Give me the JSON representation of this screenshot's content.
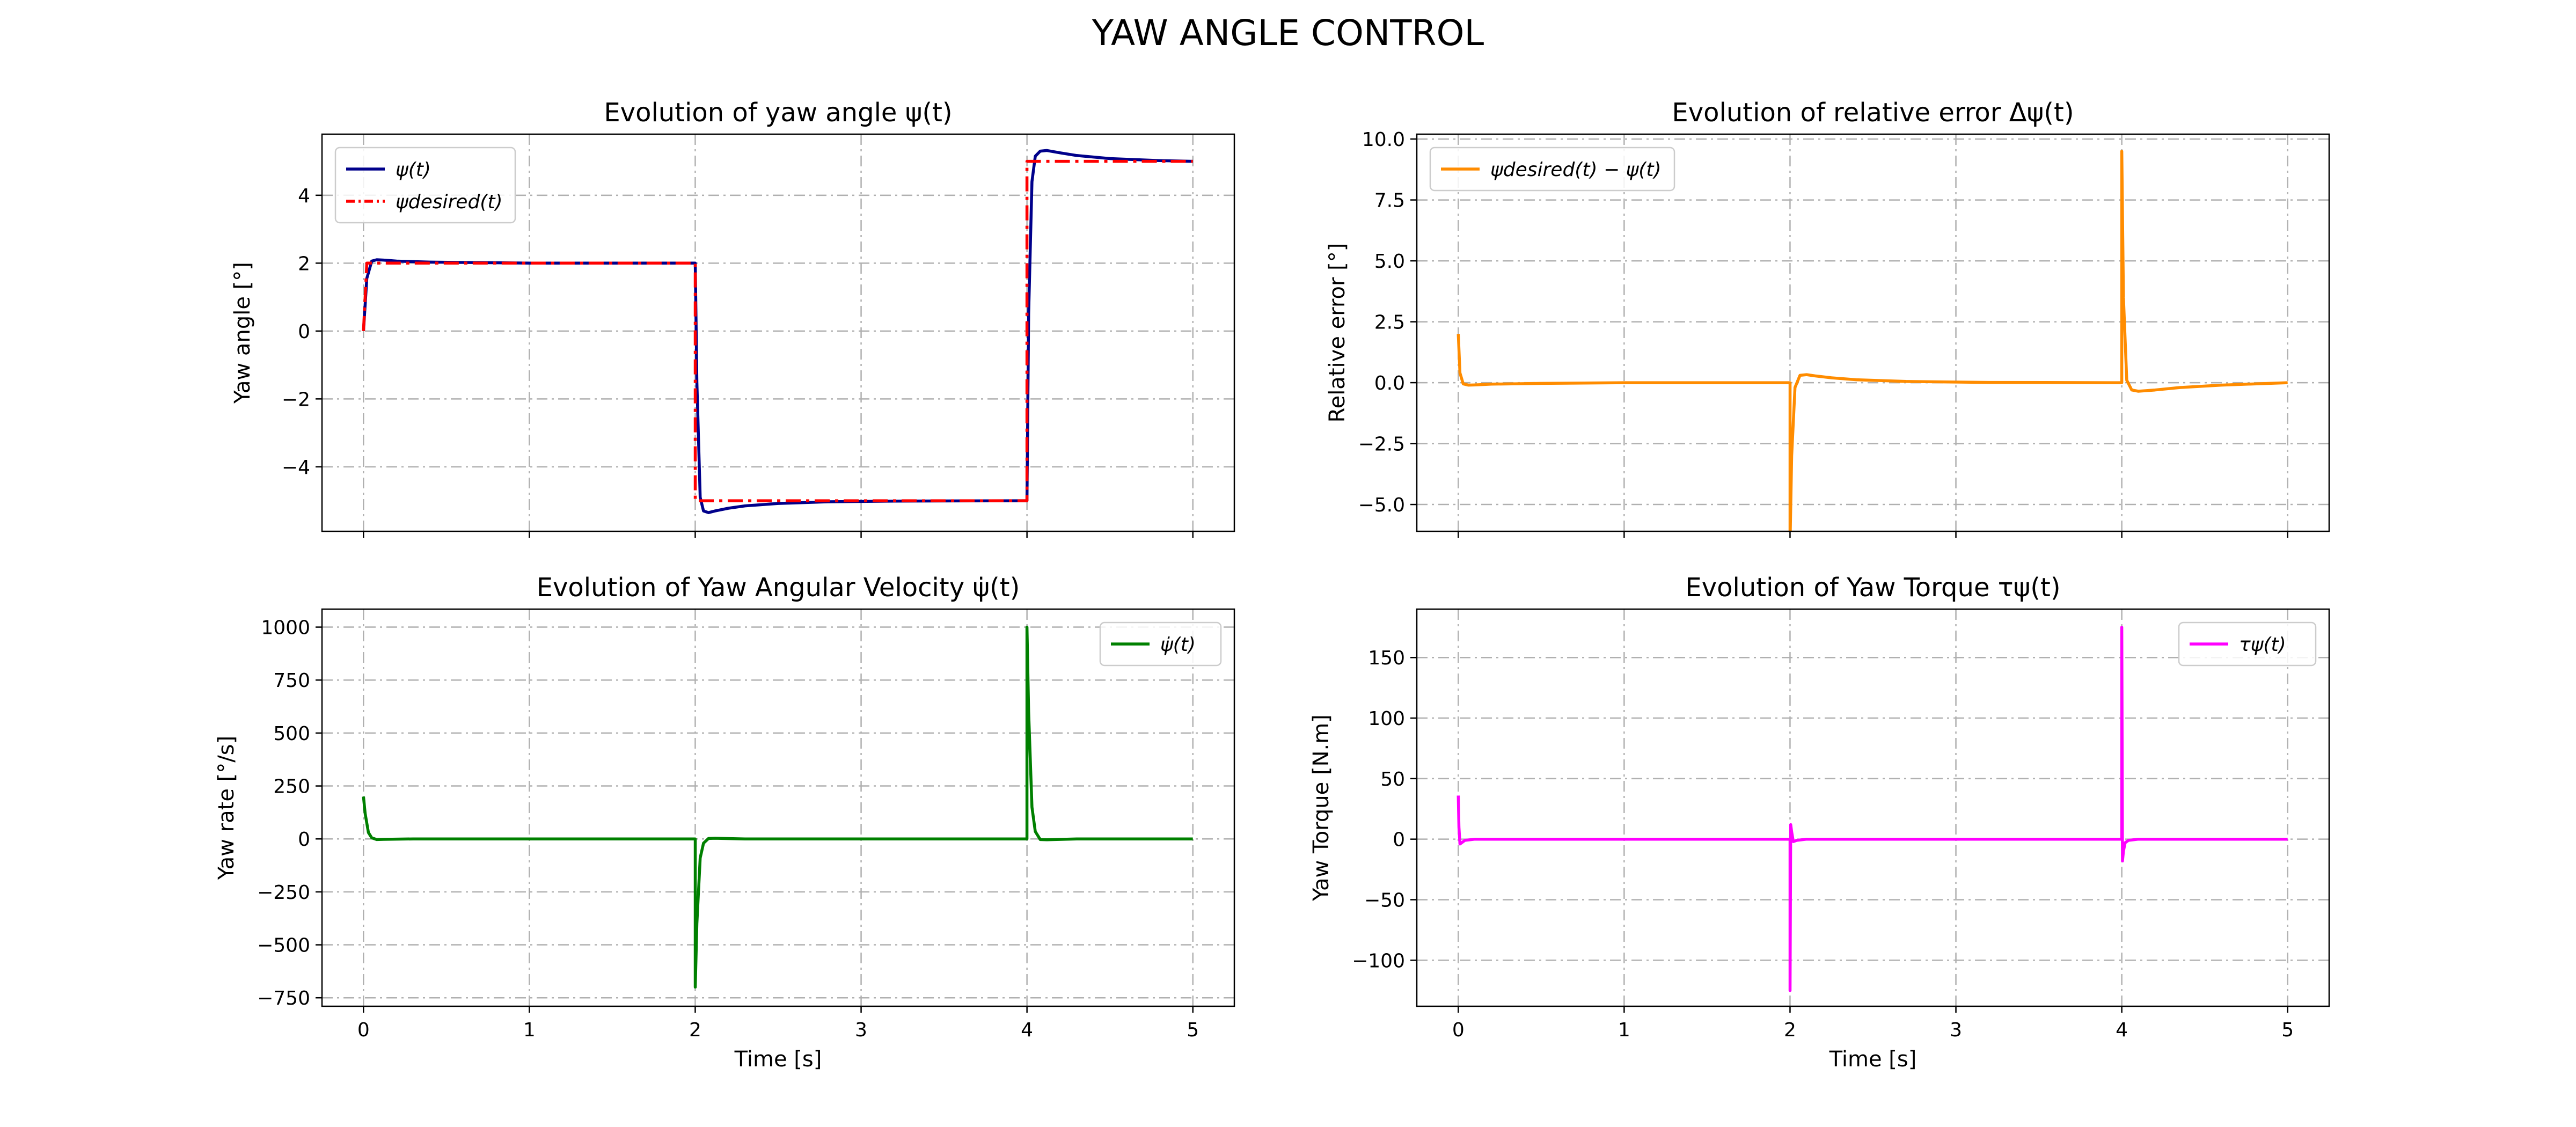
{
  "suptitle": "YAW ANGLE CONTROL",
  "colors": {
    "grid": "#b0b0b0",
    "psi": "#00008b",
    "psi_desired": "#ff0000",
    "error": "#ff8c00",
    "rate": "#008000",
    "torque": "#ff00ff"
  },
  "chart_data": [
    {
      "type": "line",
      "title": "Evolution of yaw angle ψ(t)",
      "xlabel": "",
      "ylabel": "Yaw angle [°]",
      "xlim": [
        -0.25,
        5.25
      ],
      "ylim": [
        -5.9,
        5.8
      ],
      "xticks": [
        0,
        1,
        2,
        3,
        4,
        5
      ],
      "xtick_labels": [
        "",
        "",
        "",
        "",
        "",
        ""
      ],
      "yticks": [
        -4,
        -2,
        0,
        2,
        4
      ],
      "ytick_labels": [
        "−4",
        "−2",
        "0",
        "2",
        "4"
      ],
      "grid": true,
      "legend_position": "upper left",
      "series": [
        {
          "name": "ψ(t)",
          "color": "#00008b",
          "style": "solid",
          "x": [
            0,
            0.02,
            0.05,
            0.08,
            0.12,
            0.2,
            0.4,
            1.0,
            2.0,
            2.01,
            2.03,
            2.05,
            2.08,
            2.12,
            2.2,
            2.3,
            2.5,
            2.8,
            3.2,
            4.0,
            4.01,
            4.03,
            4.05,
            4.08,
            4.12,
            4.2,
            4.3,
            4.5,
            4.8,
            5.0
          ],
          "y": [
            0,
            1.55,
            2.06,
            2.1,
            2.09,
            2.06,
            2.03,
            2.0,
            2.0,
            -1.5,
            -4.9,
            -5.3,
            -5.35,
            -5.3,
            -5.22,
            -5.15,
            -5.08,
            -5.03,
            -5.01,
            -5.0,
            0.5,
            4.4,
            5.15,
            5.3,
            5.32,
            5.25,
            5.17,
            5.08,
            5.02,
            5.0
          ]
        },
        {
          "name": "ψdesired(t)",
          "color": "#ff0000",
          "style": "dashdot",
          "x": [
            0,
            0.02,
            2.0,
            2.0,
            4.0,
            4.0,
            5.0
          ],
          "y": [
            0,
            2,
            2,
            -5,
            -5,
            5,
            5
          ]
        }
      ]
    },
    {
      "type": "line",
      "title": "Evolution of relative error Δψ(t)",
      "xlabel": "",
      "ylabel": "Relative error [°]",
      "xlim": [
        -0.25,
        5.25
      ],
      "ylim": [
        -6.1,
        10.2
      ],
      "xticks": [
        0,
        1,
        2,
        3,
        4,
        5
      ],
      "xtick_labels": [
        "",
        "",
        "",
        "",
        "",
        ""
      ],
      "yticks": [
        -5.0,
        -2.5,
        0.0,
        2.5,
        5.0,
        7.5,
        10.0
      ],
      "ytick_labels": [
        "−5.0",
        "−2.5",
        "0.0",
        "2.5",
        "5.0",
        "7.5",
        "10.0"
      ],
      "grid": true,
      "legend_position": "upper left",
      "series": [
        {
          "name": "ψdesired(t) − ψ(t)",
          "color": "#ff8c00",
          "style": "solid",
          "x": [
            0,
            0.01,
            0.03,
            0.06,
            0.1,
            0.2,
            0.5,
            1.0,
            2.0,
            2.0,
            2.01,
            2.03,
            2.06,
            2.1,
            2.15,
            2.25,
            2.4,
            2.7,
            3.2,
            4.0,
            4.0,
            4.01,
            4.03,
            4.06,
            4.1,
            4.2,
            4.35,
            4.6,
            5.0
          ],
          "y": [
            2.0,
            0.4,
            -0.05,
            -0.1,
            -0.09,
            -0.06,
            -0.03,
            0.0,
            0.0,
            -6.6,
            -3.0,
            -0.2,
            0.3,
            0.33,
            0.28,
            0.2,
            0.12,
            0.05,
            0.01,
            0.0,
            9.5,
            3.5,
            0.1,
            -0.3,
            -0.35,
            -0.3,
            -0.2,
            -0.1,
            0.0
          ]
        }
      ]
    },
    {
      "type": "line",
      "title": "Evolution of Yaw Angular Velocity ψ̇(t)",
      "xlabel": "Time [s]",
      "ylabel": "Yaw rate [°/s]",
      "xlim": [
        -0.25,
        5.25
      ],
      "ylim": [
        -790,
        1085
      ],
      "xticks": [
        0,
        1,
        2,
        3,
        4,
        5
      ],
      "xtick_labels": [
        "0",
        "1",
        "2",
        "3",
        "4",
        "5"
      ],
      "yticks": [
        -750,
        -500,
        -250,
        0,
        250,
        500,
        750,
        1000
      ],
      "ytick_labels": [
        "−750",
        "−500",
        "−250",
        "0",
        "250",
        "500",
        "750",
        "1000"
      ],
      "grid": true,
      "legend_position": "upper right",
      "series": [
        {
          "name": "ψ̇(t)",
          "color": "#008000",
          "style": "solid",
          "x": [
            0,
            0.01,
            0.03,
            0.05,
            0.08,
            0.12,
            0.3,
            2.0,
            2.0,
            2.01,
            2.03,
            2.05,
            2.08,
            2.12,
            2.3,
            4.0,
            4.0,
            4.01,
            4.03,
            4.05,
            4.08,
            4.12,
            4.3,
            5.0
          ],
          "y": [
            200,
            120,
            30,
            5,
            -3,
            -2,
            0,
            0,
            -700,
            -400,
            -90,
            -20,
            2,
            3,
            0,
            0,
            1000,
            600,
            150,
            35,
            -3,
            -4,
            0,
            0
          ]
        }
      ]
    },
    {
      "type": "line",
      "title": "Evolution of Yaw Torque τψ(t)",
      "xlabel": "Time [s]",
      "ylabel": "Yaw Torque [N.m]",
      "xlim": [
        -0.25,
        5.25
      ],
      "ylim": [
        -138,
        190
      ],
      "xticks": [
        0,
        1,
        2,
        3,
        4,
        5
      ],
      "xtick_labels": [
        "0",
        "1",
        "2",
        "3",
        "4",
        "5"
      ],
      "yticks": [
        -100,
        -50,
        0,
        50,
        100,
        150
      ],
      "ytick_labels": [
        "−100",
        "−50",
        "0",
        "50",
        "100",
        "150"
      ],
      "grid": true,
      "legend_position": "upper right",
      "series": [
        {
          "name": "τψ(t)",
          "color": "#ff00ff",
          "style": "solid",
          "x": [
            0,
            0.004,
            0.01,
            0.02,
            0.04,
            0.1,
            2.0,
            2.0,
            2.004,
            2.01,
            2.02,
            2.04,
            2.1,
            4.0,
            4.0,
            4.004,
            4.01,
            4.02,
            4.04,
            4.1,
            5.0
          ],
          "y": [
            36,
            10,
            -4,
            -3,
            -1,
            0,
            0,
            -125,
            12,
            6,
            -2,
            -1,
            0,
            0,
            175,
            -18,
            -10,
            -3,
            -1,
            0,
            0
          ]
        }
      ]
    }
  ]
}
